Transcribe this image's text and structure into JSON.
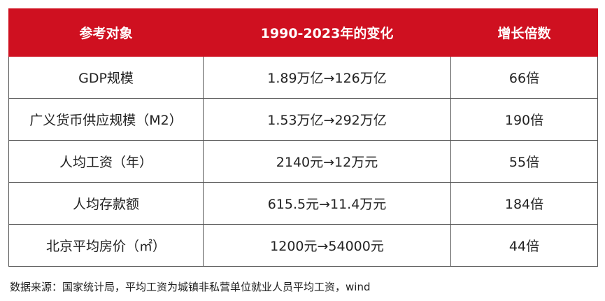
{
  "table": {
    "header": [
      "参考对象",
      "1990-2023年的变化",
      "增长倍数"
    ],
    "rows": [
      [
        "GDP规模",
        "1.89万亿→126万亿",
        "66倍"
      ],
      [
        "广义货币供应规模（M2）",
        "1.53万亿→292万亿",
        "190倍"
      ],
      [
        "人均工资（年）",
        "2140元→12万元",
        "55倍"
      ],
      [
        "人均存款额",
        "615.5元→11.4万元",
        "184倍"
      ],
      [
        "北京平均房价（㎡）",
        "1200元→54000元",
        "44倍"
      ]
    ]
  },
  "source": "数据来源：国家统计局，平均工资为城镇非私营单位就业人员平均工资，wind"
}
